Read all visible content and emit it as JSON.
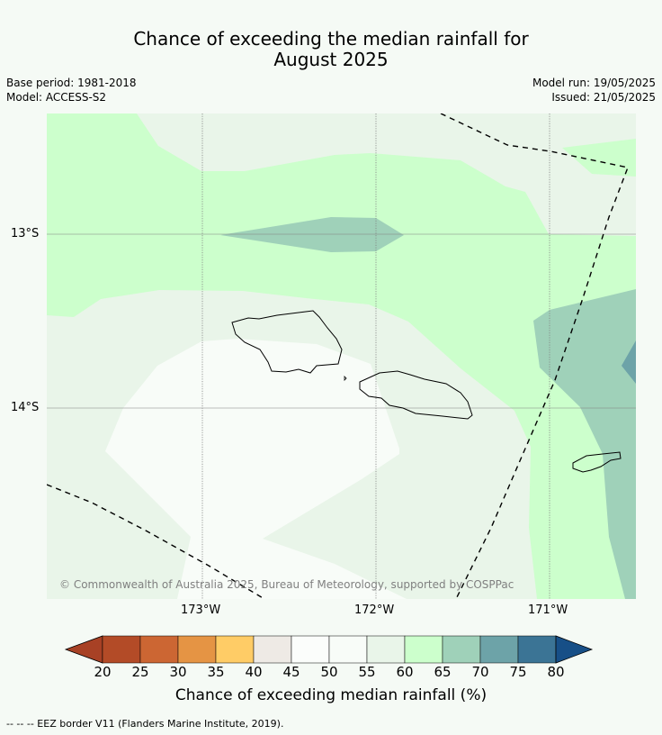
{
  "title_line1": "Chance of exceeding the median rainfall for",
  "title_line2": "August 2025",
  "base_period": "Base period: 1981-2018",
  "model": "Model: ACCESS-S2",
  "model_run": "Model run: 19/05/2025",
  "issued": "Issued: 21/05/2025",
  "copyright": "© Commonwealth of Australia 2025, Bureau of Meteorology, supported by COSPPac",
  "lat_labels": [
    "13°S",
    "14°S"
  ],
  "lon_labels": [
    "173°W",
    "172°W",
    "171°W"
  ],
  "colorbar": {
    "title": "Chance of exceeding median rainfall (%)",
    "ticks": [
      "20",
      "25",
      "30",
      "35",
      "40",
      "45",
      "50",
      "55",
      "60",
      "65",
      "70",
      "75",
      "80"
    ],
    "colors": [
      "#a84125",
      "#b34b27",
      "#cc6633",
      "#e59444",
      "#ffcc66",
      "#eeeae5",
      "#fbfdfb",
      "#f8fcf8",
      "#e9f5e9",
      "#ccffcc",
      "#9fd1b9",
      "#6da3a8",
      "#3b7495",
      "#174f87"
    ]
  },
  "footnote": "--  --  -- EEZ border V11 (Flanders Marine Institute, 2019)."
}
